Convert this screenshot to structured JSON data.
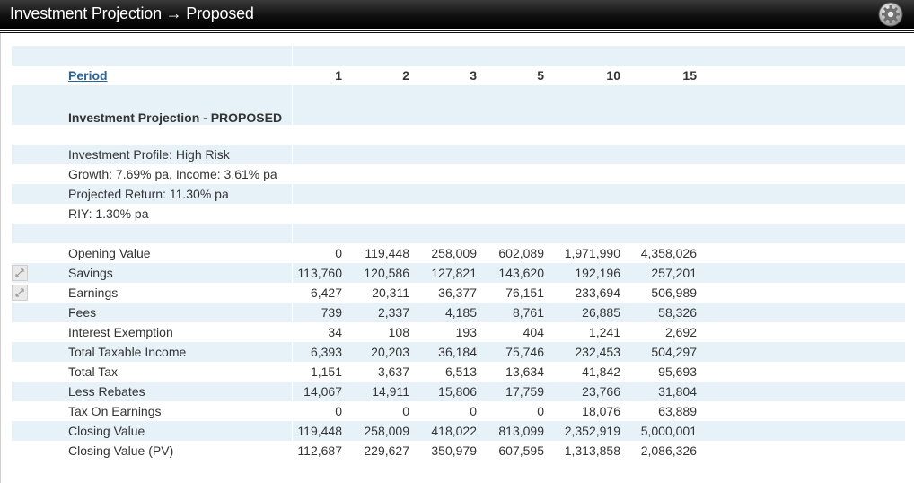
{
  "window": {
    "title": "Investment Projection → Proposed",
    "settings_icon": "gear-icon"
  },
  "table": {
    "period_label": "Period",
    "periods": [
      "1",
      "2",
      "3",
      "5",
      "10",
      "15"
    ],
    "section_title": "Investment Projection - PROPOSED",
    "info": [
      "Investment Profile: High Risk",
      "Growth: 7.69% pa, Income: 3.61% pa",
      "Projected Return: 11.30% pa",
      "RIY: 1.30% pa"
    ],
    "rows": [
      {
        "label": "Opening Value",
        "values": [
          "0",
          "119,448",
          "258,009",
          "602,089",
          "1,971,990",
          "4,358,026"
        ]
      },
      {
        "label": "Savings",
        "values": [
          "113,760",
          "120,586",
          "127,821",
          "143,620",
          "192,196",
          "257,201"
        ],
        "expand_icon": "expand-icon"
      },
      {
        "label": "Earnings",
        "values": [
          "6,427",
          "20,311",
          "36,377",
          "76,151",
          "233,694",
          "506,989"
        ],
        "expand_icon": "expand-icon"
      },
      {
        "label": "Fees",
        "values": [
          "739",
          "2,337",
          "4,185",
          "8,761",
          "26,885",
          "58,326"
        ]
      },
      {
        "label": "Interest Exemption",
        "values": [
          "34",
          "108",
          "193",
          "404",
          "1,241",
          "2,692"
        ]
      },
      {
        "label": "Total Taxable Income",
        "values": [
          "6,393",
          "20,203",
          "36,184",
          "75,746",
          "232,453",
          "504,297"
        ]
      },
      {
        "label": "Total Tax",
        "values": [
          "1,151",
          "3,637",
          "6,513",
          "13,634",
          "41,842",
          "95,693"
        ]
      },
      {
        "label": "Less Rebates",
        "values": [
          "14,067",
          "14,911",
          "15,806",
          "17,759",
          "23,766",
          "31,804"
        ]
      },
      {
        "label": "Tax On Earnings",
        "values": [
          "0",
          "0",
          "0",
          "0",
          "18,076",
          "63,889"
        ]
      },
      {
        "label": "Closing Value",
        "values": [
          "119,448",
          "258,009",
          "418,022",
          "813,099",
          "2,352,919",
          "5,000,001"
        ]
      },
      {
        "label": "Closing Value (PV)",
        "values": [
          "112,687",
          "229,627",
          "350,979",
          "607,595",
          "1,313,858",
          "2,086,326"
        ]
      }
    ]
  }
}
